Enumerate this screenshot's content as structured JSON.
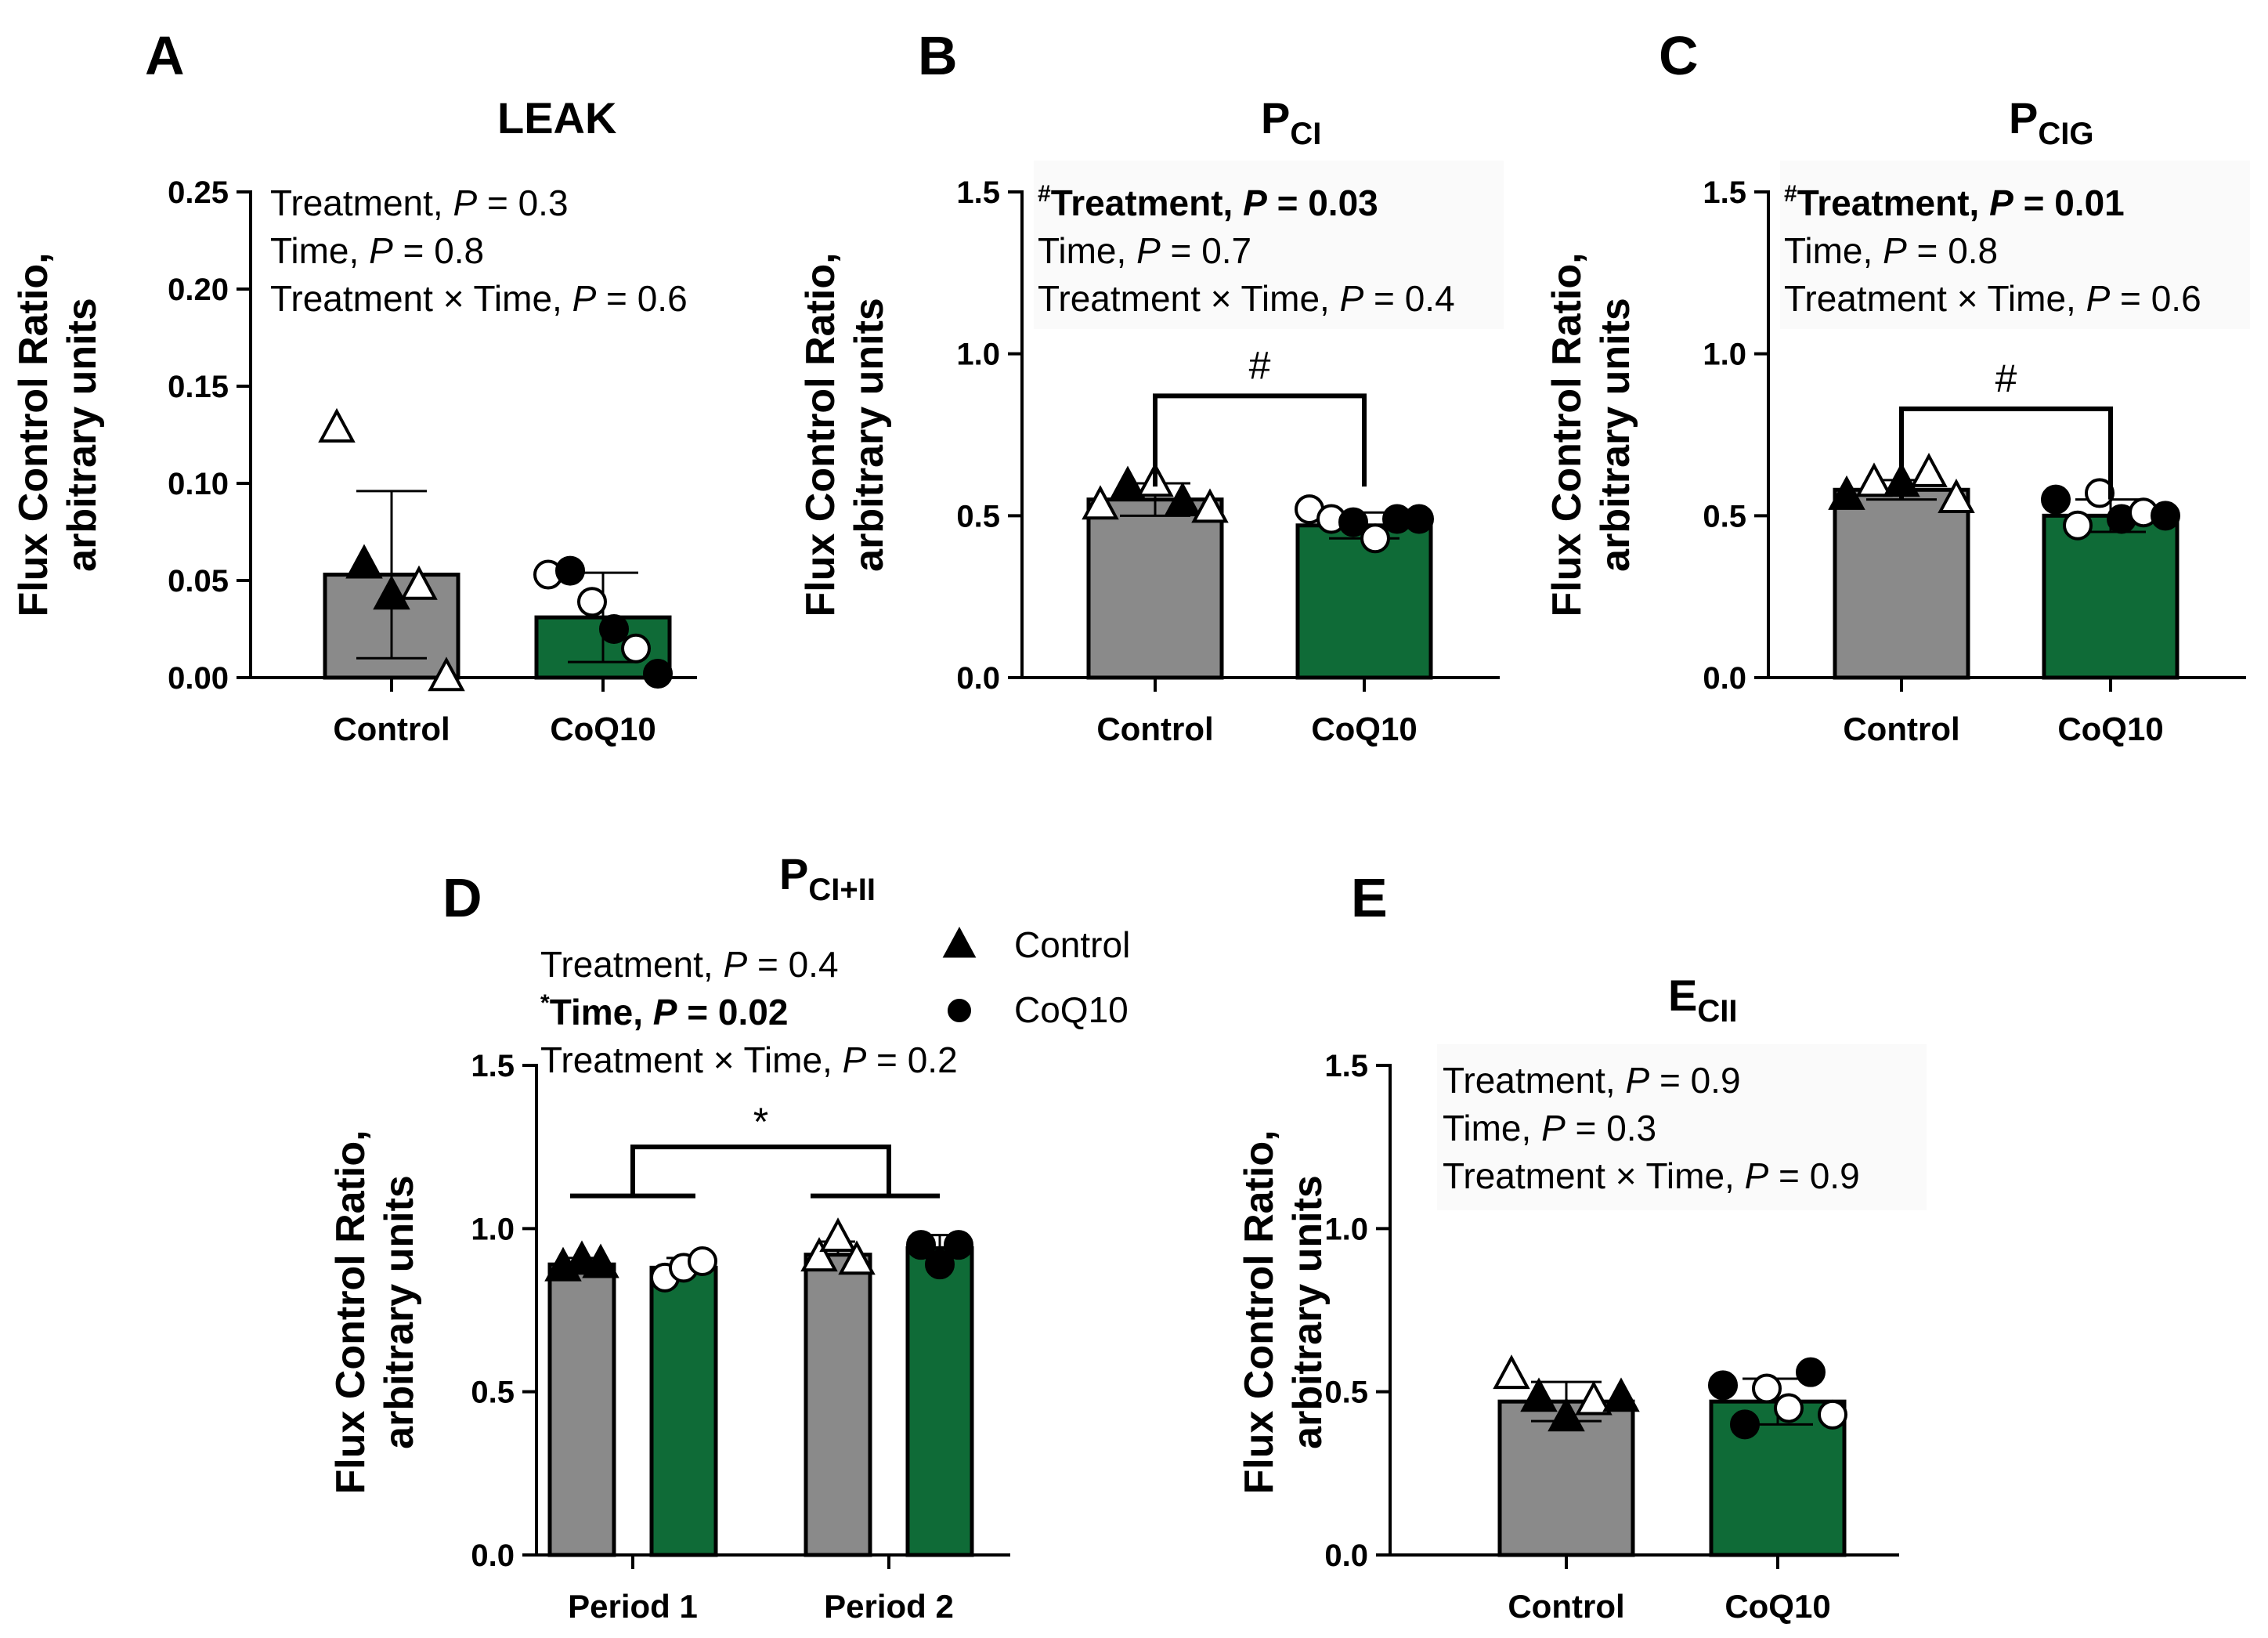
{
  "colors": {
    "control": "#8a8a8a",
    "coq10": "#0f6b37"
  },
  "legend": {
    "control_label": "Control",
    "coq10_label": "CoQ10"
  },
  "chart_data": [
    {
      "panel": "A",
      "type": "bar",
      "title": "LEAK",
      "title_sub": "",
      "ylabel_line1": "Flux Control Ratio,",
      "ylabel_line2": "arbitrary units",
      "categories": [
        "Control",
        "CoQ10"
      ],
      "values": [
        0.053,
        0.031
      ],
      "errors": [
        0.043,
        0.023
      ],
      "ylim": [
        0,
        0.25
      ],
      "yticks": [
        0,
        0.05,
        0.1,
        0.15,
        0.2,
        0.25
      ],
      "ytick_labels": [
        "0.00",
        "0.05",
        "0.10",
        "0.15",
        "0.20",
        "0.25"
      ],
      "points": [
        [
          {
            "v": 0.128,
            "filled": false,
            "shape": "triangle"
          },
          {
            "v": 0.058,
            "filled": true,
            "shape": "triangle"
          },
          {
            "v": 0.042,
            "filled": true,
            "shape": "triangle"
          },
          {
            "v": 0.047,
            "filled": false,
            "shape": "triangle"
          },
          {
            "v": 0.0,
            "filled": false,
            "shape": "triangle"
          }
        ],
        [
          {
            "v": 0.053,
            "filled": false,
            "shape": "circle"
          },
          {
            "v": 0.055,
            "filled": true,
            "shape": "circle"
          },
          {
            "v": 0.039,
            "filled": false,
            "shape": "circle"
          },
          {
            "v": 0.025,
            "filled": true,
            "shape": "circle"
          },
          {
            "v": 0.015,
            "filled": false,
            "shape": "circle"
          },
          {
            "v": 0.002,
            "filled": true,
            "shape": "circle"
          }
        ]
      ],
      "stats": [
        {
          "prefix": "",
          "label": "Treatment, ",
          "p_label": "P",
          "value": " = 0.3",
          "bold": false
        },
        {
          "prefix": "",
          "label": "Time, ",
          "p_label": "P",
          "value": " = 0.8",
          "bold": false
        },
        {
          "prefix": "",
          "label": "Treatment × Time, ",
          "p_label": "P",
          "value": " = 0.6",
          "bold": false
        }
      ],
      "brackets": []
    },
    {
      "panel": "B",
      "type": "bar",
      "title": "P",
      "title_sub": "CI",
      "ylabel_line1": "Flux Control Ratio,",
      "ylabel_line2": "arbitrary units",
      "categories": [
        "Control",
        "CoQ10"
      ],
      "values": [
        0.55,
        0.47
      ],
      "errors": [
        0.05,
        0.04
      ],
      "ylim": [
        0,
        1.5
      ],
      "yticks": [
        0,
        0.5,
        1.0,
        1.5
      ],
      "ytick_labels": [
        "0.0",
        "0.5",
        "1.0",
        "1.5"
      ],
      "points": [
        [
          {
            "v": 0.53,
            "filled": false,
            "shape": "triangle"
          },
          {
            "v": 0.59,
            "filled": true,
            "shape": "triangle"
          },
          {
            "v": 0.6,
            "filled": false,
            "shape": "triangle"
          },
          {
            "v": 0.54,
            "filled": true,
            "shape": "triangle"
          },
          {
            "v": 0.52,
            "filled": false,
            "shape": "triangle"
          }
        ],
        [
          {
            "v": 0.52,
            "filled": false,
            "shape": "circle"
          },
          {
            "v": 0.49,
            "filled": false,
            "shape": "circle"
          },
          {
            "v": 0.48,
            "filled": true,
            "shape": "circle"
          },
          {
            "v": 0.43,
            "filled": false,
            "shape": "circle"
          },
          {
            "v": 0.49,
            "filled": true,
            "shape": "circle"
          },
          {
            "v": 0.49,
            "filled": true,
            "shape": "circle"
          }
        ]
      ],
      "stats": [
        {
          "prefix": "#",
          "label": "Treatment, ",
          "p_label": "P",
          "value": " = 0.03",
          "bold": true
        },
        {
          "prefix": "",
          "label": "Time, ",
          "p_label": "P",
          "value": " = 0.7",
          "bold": false
        },
        {
          "prefix": "",
          "label": "Treatment × Time, ",
          "p_label": "P",
          "value": " = 0.4",
          "bold": false
        }
      ],
      "brackets": [
        {
          "from": 0,
          "to": 1,
          "y": 0.87,
          "symbol": "#"
        }
      ]
    },
    {
      "panel": "C",
      "type": "bar",
      "title": "P",
      "title_sub": "CIG",
      "ylabel_line1": "Flux Control Ratio,",
      "ylabel_line2": "arbitrary units",
      "categories": [
        "Control",
        "CoQ10"
      ],
      "values": [
        0.58,
        0.5
      ],
      "errors": [
        0.03,
        0.05
      ],
      "ylim": [
        0,
        1.5
      ],
      "yticks": [
        0,
        0.5,
        1.0,
        1.5
      ],
      "ytick_labels": [
        "0.0",
        "0.5",
        "1.0",
        "1.5"
      ],
      "points": [
        [
          {
            "v": 0.56,
            "filled": true,
            "shape": "triangle"
          },
          {
            "v": 0.6,
            "filled": false,
            "shape": "triangle"
          },
          {
            "v": 0.6,
            "filled": true,
            "shape": "triangle"
          },
          {
            "v": 0.63,
            "filled": false,
            "shape": "triangle"
          },
          {
            "v": 0.55,
            "filled": false,
            "shape": "triangle"
          }
        ],
        [
          {
            "v": 0.55,
            "filled": true,
            "shape": "circle"
          },
          {
            "v": 0.47,
            "filled": false,
            "shape": "circle"
          },
          {
            "v": 0.57,
            "filled": false,
            "shape": "circle"
          },
          {
            "v": 0.49,
            "filled": true,
            "shape": "circle"
          },
          {
            "v": 0.51,
            "filled": false,
            "shape": "circle"
          },
          {
            "v": 0.5,
            "filled": true,
            "shape": "circle"
          }
        ]
      ],
      "stats": [
        {
          "prefix": "#",
          "label": "Treatment, ",
          "p_label": "P",
          "value": " = 0.01",
          "bold": true
        },
        {
          "prefix": "",
          "label": "Time, ",
          "p_label": "P",
          "value": " = 0.8",
          "bold": false
        },
        {
          "prefix": "",
          "label": "Treatment × Time, ",
          "p_label": "P",
          "value": " = 0.6",
          "bold": false
        }
      ],
      "brackets": [
        {
          "from": 0,
          "to": 1,
          "y": 0.83,
          "symbol": "#"
        }
      ]
    },
    {
      "panel": "D",
      "type": "bar",
      "title": "P",
      "title_sub": "CI+II",
      "ylabel_line1": "Flux Control Ratio,",
      "ylabel_line2": "arbitrary units",
      "categories": [
        "Period 1",
        "Period 2"
      ],
      "series": [
        {
          "name": "Control",
          "values": [
            0.89,
            0.92
          ],
          "errors": [
            0.02,
            0.04
          ]
        },
        {
          "name": "CoQ10",
          "values": [
            0.88,
            0.94
          ],
          "errors": [
            0.03,
            0.04
          ]
        }
      ],
      "ylim": [
        0,
        1.5
      ],
      "yticks": [
        0,
        0.5,
        1.0,
        1.5
      ],
      "ytick_labels": [
        "0.0",
        "0.5",
        "1.0",
        "1.5"
      ],
      "points": [
        [
          {
            "v": 0.88,
            "filled": true,
            "shape": "triangle"
          },
          {
            "v": 0.9,
            "filled": true,
            "shape": "triangle"
          },
          {
            "v": 0.89,
            "filled": true,
            "shape": "triangle"
          }
        ],
        [
          {
            "v": 0.85,
            "filled": false,
            "shape": "circle"
          },
          {
            "v": 0.88,
            "filled": false,
            "shape": "circle"
          },
          {
            "v": 0.9,
            "filled": false,
            "shape": "circle"
          }
        ],
        [
          {
            "v": 0.91,
            "filled": false,
            "shape": "triangle"
          },
          {
            "v": 0.97,
            "filled": false,
            "shape": "triangle"
          },
          {
            "v": 0.9,
            "filled": false,
            "shape": "triangle"
          }
        ],
        [
          {
            "v": 0.95,
            "filled": true,
            "shape": "circle"
          },
          {
            "v": 0.89,
            "filled": true,
            "shape": "circle"
          },
          {
            "v": 0.95,
            "filled": true,
            "shape": "circle"
          }
        ]
      ],
      "stats": [
        {
          "prefix": "",
          "label": "Treatment, ",
          "p_label": "P",
          "value": " = 0.4",
          "bold": false
        },
        {
          "prefix": "*",
          "label": "Time, ",
          "p_label": "P",
          "value": " = 0.02",
          "bold": true
        },
        {
          "prefix": "",
          "label": "Treatment × Time, ",
          "p_label": "P",
          "value": " = 0.2",
          "bold": false
        }
      ],
      "brackets": [
        {
          "from": 0,
          "to": 1,
          "y": 1.25,
          "symbol": "*"
        }
      ]
    },
    {
      "panel": "E",
      "type": "bar",
      "title": "E",
      "title_sub": "CII",
      "ylabel_line1": "Flux Control Ratio,",
      "ylabel_line2": "arbitrary units",
      "categories": [
        "Control",
        "CoQ10"
      ],
      "values": [
        0.47,
        0.47
      ],
      "errors": [
        0.06,
        0.07
      ],
      "ylim": [
        0,
        1.5
      ],
      "yticks": [
        0,
        0.5,
        1.0,
        1.5
      ],
      "ytick_labels": [
        "0.0",
        "0.5",
        "1.0",
        "1.5"
      ],
      "points": [
        [
          {
            "v": 0.55,
            "filled": false,
            "shape": "triangle"
          },
          {
            "v": 0.48,
            "filled": true,
            "shape": "triangle"
          },
          {
            "v": 0.42,
            "filled": true,
            "shape": "triangle"
          },
          {
            "v": 0.47,
            "filled": false,
            "shape": "triangle"
          },
          {
            "v": 0.48,
            "filled": true,
            "shape": "triangle"
          }
        ],
        [
          {
            "v": 0.52,
            "filled": true,
            "shape": "circle"
          },
          {
            "v": 0.4,
            "filled": true,
            "shape": "circle"
          },
          {
            "v": 0.51,
            "filled": false,
            "shape": "circle"
          },
          {
            "v": 0.45,
            "filled": false,
            "shape": "circle"
          },
          {
            "v": 0.56,
            "filled": true,
            "shape": "circle"
          },
          {
            "v": 0.43,
            "filled": false,
            "shape": "circle"
          }
        ]
      ],
      "stats": [
        {
          "prefix": "",
          "label": "Treatment, ",
          "p_label": "P",
          "value": " = 0.9",
          "bold": false
        },
        {
          "prefix": "",
          "label": "Time, ",
          "p_label": "P",
          "value": " = 0.3",
          "bold": false
        },
        {
          "prefix": "",
          "label": "Treatment × Time, ",
          "p_label": "P",
          "value": " = 0.9",
          "bold": false
        }
      ],
      "brackets": []
    }
  ]
}
